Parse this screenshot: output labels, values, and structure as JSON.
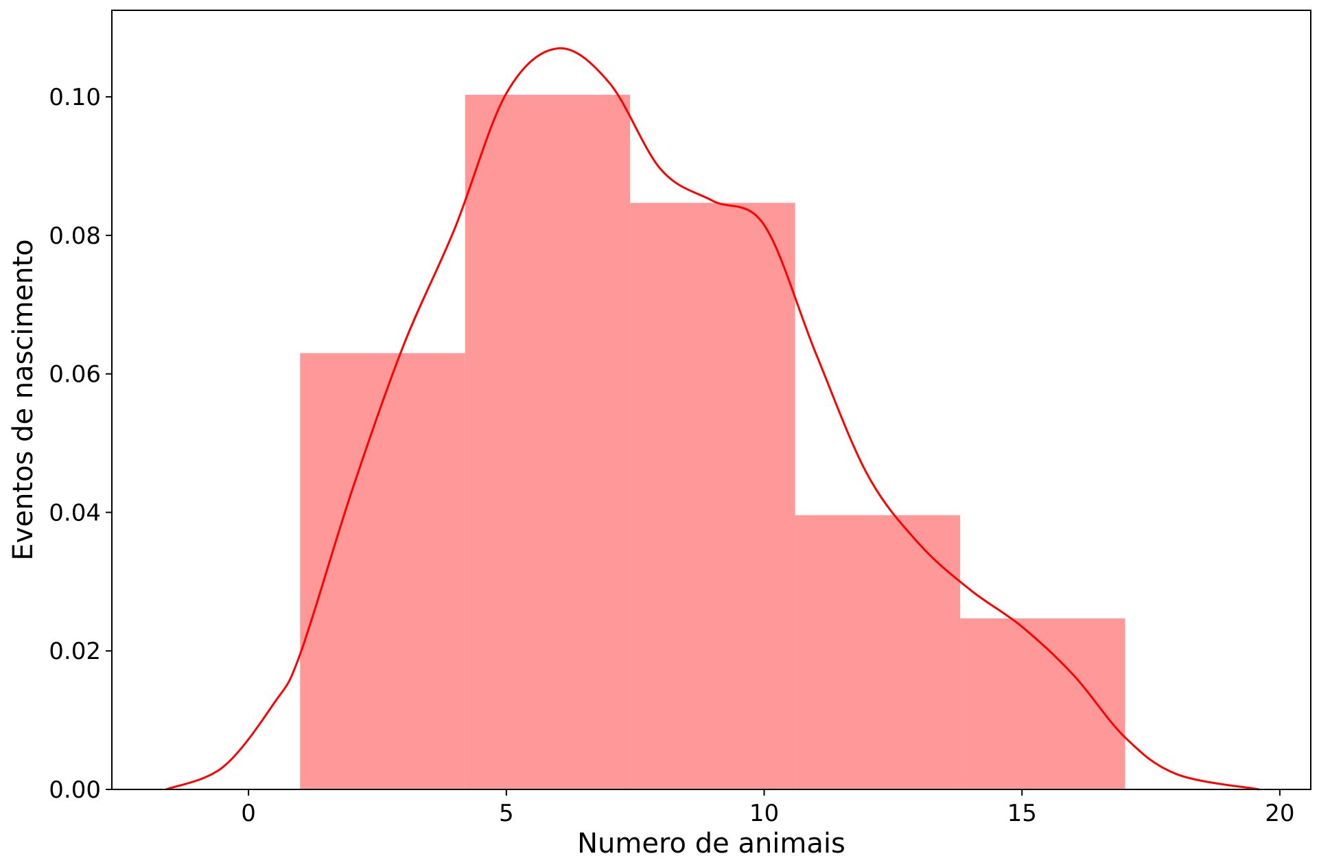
{
  "chart_data": {
    "type": "bar",
    "subtype": "histogram with density curve",
    "xlabel": "Numero de animais",
    "ylabel": "Eventos de nascimento",
    "xlim": [
      -2.65,
      20.6
    ],
    "ylim": [
      0,
      0.1125
    ],
    "x_ticks": [
      0,
      5,
      10,
      15,
      20
    ],
    "x_tick_labels": [
      "0",
      "5",
      "10",
      "15",
      "20"
    ],
    "y_ticks": [
      0,
      0.02,
      0.04,
      0.06,
      0.08,
      0.1
    ],
    "y_tick_labels": [
      "0.00",
      "0.02",
      "0.04",
      "0.06",
      "0.08",
      "0.10"
    ],
    "grid": false,
    "bins": [
      {
        "x0": 1.0,
        "x1": 4.2,
        "value": 0.063
      },
      {
        "x0": 4.2,
        "x1": 7.4,
        "value": 0.1003
      },
      {
        "x0": 7.4,
        "x1": 10.6,
        "value": 0.0847
      },
      {
        "x0": 10.6,
        "x1": 13.8,
        "value": 0.0396
      },
      {
        "x0": 13.8,
        "x1": 17.0,
        "value": 0.0247
      }
    ],
    "kde": {
      "x": [
        -1.6,
        -0.5,
        0.5,
        1.0,
        2.0,
        3.0,
        4.0,
        5.0,
        6.0,
        7.0,
        8.0,
        9.0,
        10.0,
        11.0,
        12.0,
        13.0,
        14.0,
        15.0,
        16.0,
        17.0,
        18.0,
        19.6
      ],
      "y": [
        0.0,
        0.0032,
        0.0125,
        0.0195,
        0.043,
        0.064,
        0.081,
        0.1005,
        0.107,
        0.102,
        0.0895,
        0.085,
        0.0815,
        0.063,
        0.0455,
        0.0355,
        0.0288,
        0.0235,
        0.0165,
        0.0075,
        0.0022,
        0.0
      ]
    },
    "colors": {
      "bars": "#ff9999",
      "kde_line": "#ff0000",
      "axes": "#000000"
    }
  }
}
